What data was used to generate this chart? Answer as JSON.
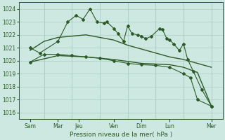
{
  "bg_color": "#cce8e0",
  "grid_color": "#aaccc4",
  "line_color": "#2d5a27",
  "xlabel": "Pression niveau de la mer( hPa )",
  "ylim": [
    1015.5,
    1024.5
  ],
  "yticks": [
    1016,
    1017,
    1018,
    1019,
    1020,
    1021,
    1022,
    1023,
    1024
  ],
  "xlim": [
    -0.3,
    14.3
  ],
  "xtick_positions": [
    0.5,
    2.5,
    4.0,
    6.5,
    8.5,
    10.5,
    13.5
  ],
  "xtick_labels": [
    "Sam",
    "Mar",
    "Jeu",
    "Ven",
    "Dim",
    "Lun",
    "Mer"
  ],
  "vlines_x": [
    1.5,
    3.5,
    5.5,
    7.5,
    9.5,
    11.5,
    13.5
  ],
  "s1_x": [
    0.5,
    1.2,
    2.5,
    3.2,
    3.8,
    4.3,
    4.8,
    5.3,
    5.8,
    6.0,
    6.5,
    6.8,
    7.2,
    7.5,
    7.8,
    8.2,
    8.5,
    8.8,
    9.2,
    9.8,
    10.0,
    10.3,
    10.5,
    10.8,
    11.2,
    11.5,
    11.8,
    12.2,
    12.8,
    13.5
  ],
  "s1_y": [
    1021.0,
    1020.6,
    1021.5,
    1023.0,
    1023.5,
    1023.2,
    1024.0,
    1023.0,
    1022.9,
    1023.0,
    1022.5,
    1022.1,
    1021.5,
    1022.7,
    1022.1,
    1022.0,
    1021.9,
    1021.7,
    1021.9,
    1022.5,
    1022.4,
    1021.7,
    1021.6,
    1021.3,
    1020.8,
    1021.3,
    1020.1,
    1019.2,
    1017.8,
    1016.5
  ],
  "s2_x": [
    0.5,
    1.5,
    2.5,
    3.5,
    4.5,
    5.5,
    6.5,
    7.5,
    8.5,
    9.5,
    10.5,
    11.5,
    12.5,
    13.5
  ],
  "s2_y": [
    1020.8,
    1021.5,
    1021.8,
    1021.9,
    1022.0,
    1021.8,
    1021.6,
    1021.2,
    1020.9,
    1020.6,
    1020.3,
    1020.1,
    1019.8,
    1019.5
  ],
  "s3_x": [
    0.5,
    2.5,
    4.5,
    6.5,
    8.5,
    10.5,
    11.5,
    12.5,
    13.5
  ],
  "s3_y": [
    1019.9,
    1020.4,
    1020.3,
    1020.1,
    1019.8,
    1019.7,
    1019.5,
    1019.1,
    1016.5
  ],
  "s4_x": [
    0.5,
    1.5,
    2.5,
    3.5,
    4.5,
    5.5,
    6.5,
    7.5,
    8.5,
    9.5,
    10.5,
    11.5,
    12.0,
    12.5,
    13.5
  ],
  "s4_y": [
    1019.9,
    1020.5,
    1020.5,
    1020.4,
    1020.3,
    1020.2,
    1020.0,
    1019.8,
    1019.7,
    1019.65,
    1019.5,
    1019.0,
    1018.7,
    1017.0,
    1016.5
  ]
}
